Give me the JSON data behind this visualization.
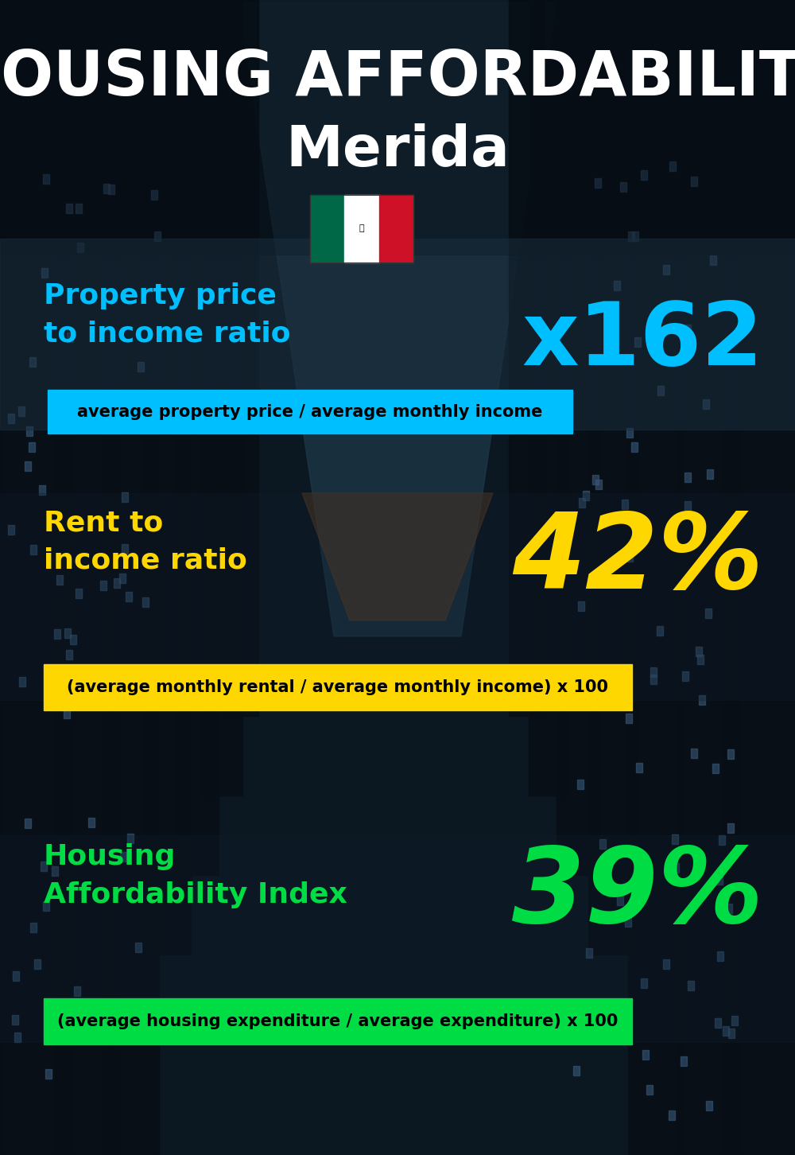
{
  "title_line1": "HOUSING AFFORDABILITY",
  "title_line2": "Merida",
  "bg_color": "#0a1520",
  "section1_label": "Property price\nto income ratio",
  "section1_value": "x162",
  "section1_label_color": "#00bfff",
  "section1_value_color": "#00bfff",
  "section1_banner": "average property price / average monthly income",
  "section1_banner_bg": "#00bfff",
  "section2_label": "Rent to\nincome ratio",
  "section2_value": "42%",
  "section2_label_color": "#FFD700",
  "section2_value_color": "#FFD700",
  "section2_banner": "(average monthly rental / average monthly income) x 100",
  "section2_banner_bg": "#FFD700",
  "section3_label": "Housing\nAffordability Index",
  "section3_value": "39%",
  "section3_label_color": "#00dd44",
  "section3_value_color": "#00dd44",
  "section3_banner": "(average housing expenditure / average expenditure) x 100",
  "section3_banner_bg": "#00dd44",
  "flag_green": "#006847",
  "flag_white": "#ffffff",
  "flag_red": "#CE1126"
}
